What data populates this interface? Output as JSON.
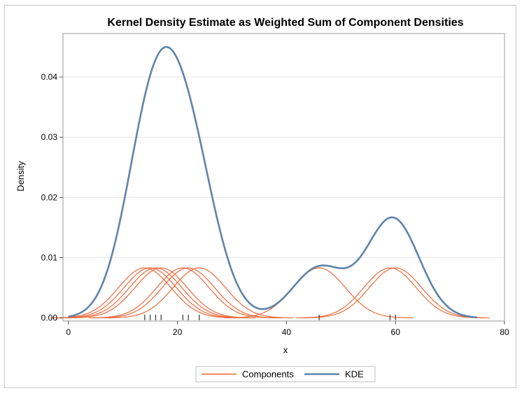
{
  "chart_data": {
    "type": "line",
    "title": "Kernel Density Estimate as Weighted Sum of Component Densities",
    "xlabel": "x",
    "ylabel": "Density",
    "xlim": [
      -1,
      80
    ],
    "ylim": [
      -0.0005,
      0.0472
    ],
    "xticks": [
      0,
      20,
      40,
      60,
      80
    ],
    "yticks": [
      0.0,
      0.01,
      0.02,
      0.03,
      0.04
    ],
    "ytick_labels": [
      "0.00",
      "0.01",
      "0.02",
      "0.03",
      "0.04"
    ],
    "grid": "horizontal",
    "legend_position": "bottom",
    "observations": [
      14,
      15,
      16,
      17,
      21,
      22,
      24,
      46,
      59,
      60
    ],
    "kernel_bandwidth": 4.8,
    "series": [
      {
        "name": "Components",
        "color": "#ee6a3c"
      },
      {
        "name": "KDE",
        "color": "#5f84a8"
      }
    ]
  }
}
